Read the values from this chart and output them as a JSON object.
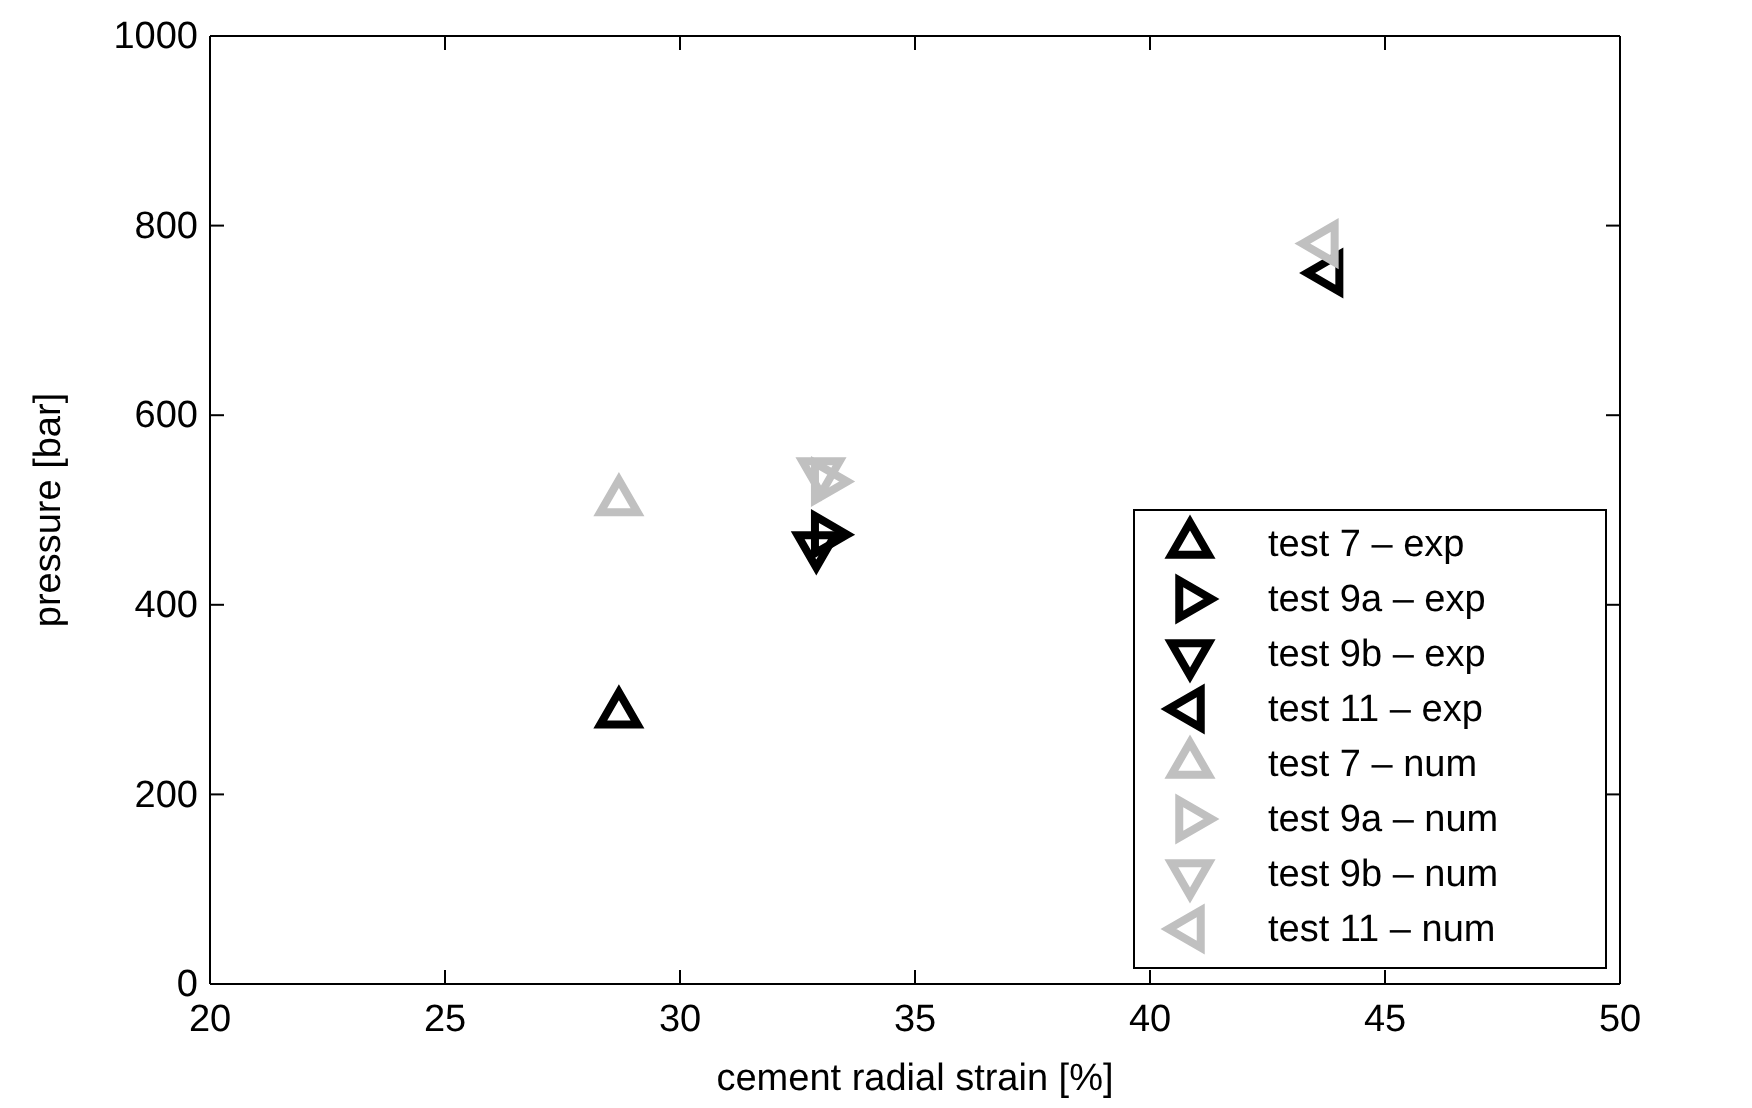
{
  "chart_data": {
    "type": "scatter",
    "xlabel": "cement radial strain [%]",
    "ylabel": "pressure [bar]",
    "xlim": [
      20,
      50
    ],
    "xticks": [
      20,
      25,
      30,
      35,
      40,
      45,
      50
    ],
    "ylim": [
      0,
      1000
    ],
    "yticks": [
      0,
      200,
      400,
      600,
      800,
      1000
    ],
    "grid": false,
    "legend": "bottom right",
    "marker": "triangle",
    "series": [
      {
        "name": "test 7 – exp",
        "color": "#000000",
        "x": [
          28.7
        ],
        "values": [
          285
        ]
      },
      {
        "name": "test 9a – exp",
        "color": "#000000",
        "x": [
          33.1
        ],
        "values": [
          474
        ]
      },
      {
        "name": "test 9b – exp",
        "color": "#000000",
        "x": [
          32.9
        ],
        "values": [
          462
        ]
      },
      {
        "name": "test 11 – exp",
        "color": "#000000",
        "x": [
          43.8
        ],
        "values": [
          750
        ]
      },
      {
        "name": "test 7 – num",
        "color": "#c0c0c0",
        "x": [
          28.7
        ],
        "values": [
          509
        ]
      },
      {
        "name": "test 9a – num",
        "color": "#c0c0c0",
        "x": [
          33.1
        ],
        "values": [
          530
        ]
      },
      {
        "name": "test 9b – num",
        "color": "#c0c0c0",
        "x": [
          33.0
        ],
        "values": [
          540
        ]
      },
      {
        "name": "test 11 – num",
        "color": "#c0c0c0",
        "x": [
          43.7
        ],
        "values": [
          781
        ]
      }
    ]
  }
}
